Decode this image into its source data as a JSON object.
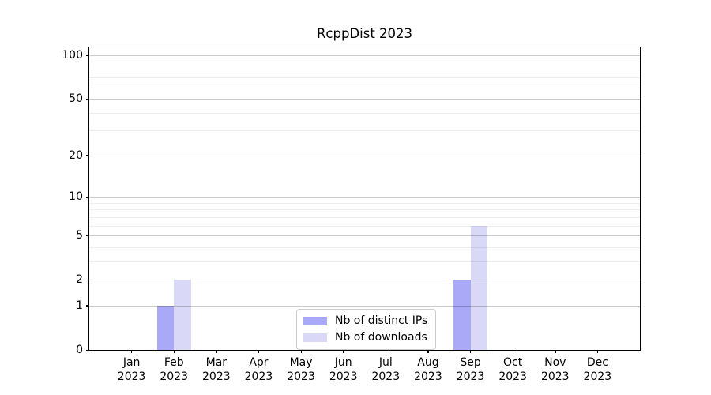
{
  "figure": {
    "background": "#ffffff"
  },
  "chart_data": {
    "type": "bar",
    "title": "RcppDist 2023",
    "categories": [
      {
        "month": "Jan",
        "year": "2023"
      },
      {
        "month": "Feb",
        "year": "2023"
      },
      {
        "month": "Mar",
        "year": "2023"
      },
      {
        "month": "Apr",
        "year": "2023"
      },
      {
        "month": "May",
        "year": "2023"
      },
      {
        "month": "Jun",
        "year": "2023"
      },
      {
        "month": "Jul",
        "year": "2023"
      },
      {
        "month": "Aug",
        "year": "2023"
      },
      {
        "month": "Sep",
        "year": "2023"
      },
      {
        "month": "Oct",
        "year": "2023"
      },
      {
        "month": "Nov",
        "year": "2023"
      },
      {
        "month": "Dec",
        "year": "2023"
      }
    ],
    "series": [
      {
        "name": "Nb of distinct IPs",
        "color": "#a9a9f7",
        "values": [
          0,
          1,
          0,
          0,
          0,
          0,
          0,
          0,
          2,
          0,
          0,
          0
        ]
      },
      {
        "name": "Nb of downloads",
        "color": "#d9d9f7",
        "values": [
          0,
          2,
          0,
          0,
          0,
          0,
          0,
          0,
          6,
          0,
          0,
          0
        ]
      }
    ],
    "xlabel": "",
    "ylabel": "",
    "yaxis": {
      "scale": "log1p",
      "ticks": [
        0,
        1,
        2,
        5,
        10,
        20,
        50,
        100
      ],
      "minor_ticks": [
        3,
        4,
        6,
        7,
        8,
        9,
        30,
        40,
        60,
        70,
        80,
        90
      ],
      "ylim": [
        0,
        113
      ]
    },
    "grid": {
      "on": true,
      "major_color": "#c9c9c9",
      "minor_color": "#ededed"
    },
    "legend": {
      "position": "lower center",
      "border_color": "#cccccc"
    }
  }
}
